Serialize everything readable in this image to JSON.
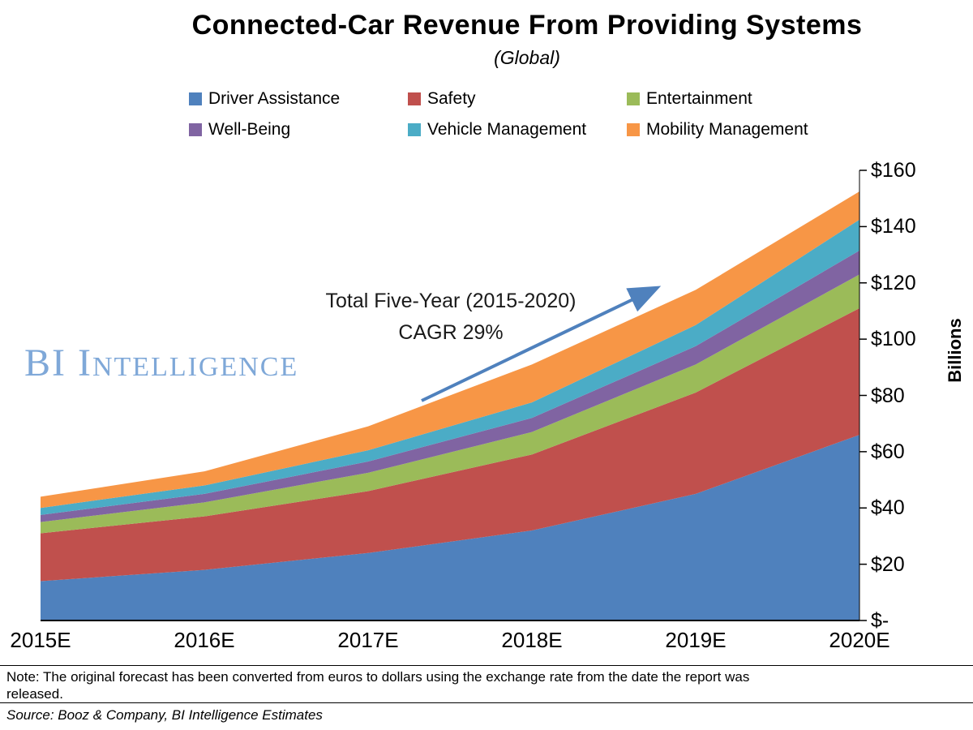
{
  "header": {
    "title": "Connected-Car Revenue From Providing Systems",
    "subtitle": "(Global)"
  },
  "watermark": {
    "text": "BI Intelligence"
  },
  "annotation": {
    "line1": "Total Five-Year (2015-2020)",
    "line2": "CAGR 29%",
    "arrow_color": "#4F81BD"
  },
  "note": {
    "text": "Note: The original forecast has been converted from euros to dollars using the exchange rate from the date the report was released."
  },
  "source": {
    "text": "Source: Booz & Company, BI Intelligence Estimates"
  },
  "chart_data": {
    "type": "area",
    "stacked": true,
    "title": "Connected-Car Revenue From Providing Systems",
    "subtitle": "(Global)",
    "categories": [
      "2015E",
      "2016E",
      "2017E",
      "2018E",
      "2019E",
      "2020E"
    ],
    "series": [
      {
        "name": "Driver Assistance",
        "color": "#4F81BD",
        "values": [
          14,
          18,
          24,
          32,
          45,
          66
        ]
      },
      {
        "name": "Safety",
        "color": "#C0504D",
        "values": [
          17,
          19,
          22,
          27,
          36,
          45
        ]
      },
      {
        "name": "Entertainment",
        "color": "#9BBB59",
        "values": [
          4,
          5,
          6.5,
          8,
          10,
          12
        ]
      },
      {
        "name": "Well-Being",
        "color": "#8064A2",
        "values": [
          2.5,
          3,
          4,
          5,
          6.5,
          8.5
        ]
      },
      {
        "name": "Vehicle Management",
        "color": "#4BACC6",
        "values": [
          2.5,
          3,
          4,
          5.5,
          7.5,
          11
        ]
      },
      {
        "name": "Mobility Management",
        "color": "#F79646",
        "values": [
          4,
          5,
          8.5,
          13.5,
          12.5,
          10
        ]
      }
    ],
    "ylabel": "Billions",
    "ylim": [
      0,
      160
    ],
    "ytick_step": 20,
    "ytick_labels": [
      "$-",
      "$20",
      "$40",
      "$60",
      "$80",
      "$100",
      "$120",
      "$140",
      "$160"
    ],
    "grid": false,
    "legend_position": "top"
  }
}
